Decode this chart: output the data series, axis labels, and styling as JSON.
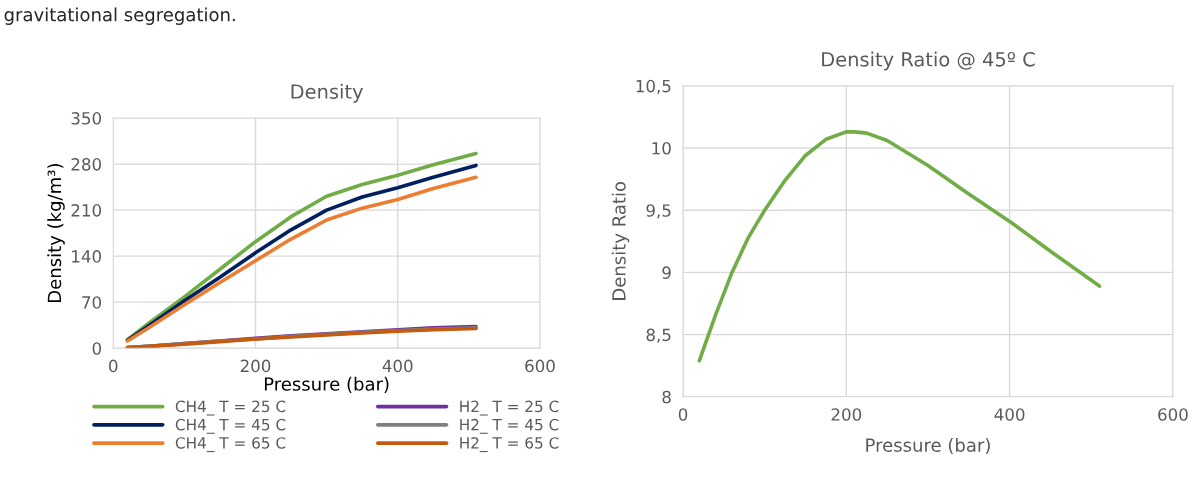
{
  "chart_data": [
    {
      "type": "line",
      "title": "Density",
      "xlabel": "Pressure (bar)",
      "ylabel": "Density (kg/m³)",
      "annotations": [
        "gravitational segregation."
      ],
      "x": [
        20,
        50,
        100,
        150,
        200,
        250,
        300,
        350,
        400,
        450,
        510
      ],
      "series": [
        {
          "name": "CH4_ T = 25 C",
          "color": "#70ad47",
          "values": [
            13,
            38,
            78,
            120,
            162,
            200,
            231,
            249,
            263,
            279,
            296
          ]
        },
        {
          "name": "CH4_ T = 45 C",
          "color": "#002060",
          "values": [
            12,
            34,
            72,
            108,
            145,
            180,
            210,
            230,
            244,
            260,
            278
          ]
        },
        {
          "name": "CH4_ T = 65 C",
          "color": "#ed7d31",
          "values": [
            11,
            31,
            66,
            100,
            133,
            166,
            195,
            213,
            226,
            243,
            260
          ]
        },
        {
          "name": "H2_ T = 25 C",
          "color": "#7030a0",
          "values": [
            1,
            3,
            7,
            11,
            15,
            19,
            22,
            25,
            28,
            31,
            33
          ]
        },
        {
          "name": "H2_ T = 45 C",
          "color": "#7f7f7f",
          "values": [
            1,
            3,
            7,
            11,
            14,
            18,
            21,
            24,
            27,
            29,
            31
          ]
        },
        {
          "name": "H2_ T = 65 C",
          "color": "#c55a11",
          "values": [
            1,
            3,
            6,
            10,
            14,
            17,
            20,
            23,
            26,
            28,
            30
          ]
        }
      ],
      "xlim": [
        0,
        600
      ],
      "xticks": [
        0,
        200,
        400,
        600
      ],
      "ylim": [
        0,
        350
      ],
      "yticks": [
        0,
        70,
        140,
        210,
        280,
        350
      ],
      "grid": true,
      "legend": "bottom",
      "marker": "none",
      "line_style": "solid"
    },
    {
      "type": "line",
      "title": "Density Ratio @ 45º C",
      "xlabel": "Pressure (bar)",
      "ylabel": "Density Ratio",
      "x": [
        20,
        40,
        60,
        80,
        100,
        125,
        150,
        175,
        200,
        210,
        225,
        250,
        300,
        350,
        400,
        450,
        510
      ],
      "series": [
        {
          "color": "#70ad47",
          "values": [
            8.29,
            8.66,
            9.0,
            9.28,
            9.5,
            9.74,
            9.94,
            10.07,
            10.13,
            10.13,
            10.12,
            10.06,
            9.86,
            9.63,
            9.41,
            9.17,
            8.89
          ]
        }
      ],
      "xlim": [
        0,
        600
      ],
      "xticks": [
        0,
        200,
        400,
        600
      ],
      "ylim": [
        8,
        10.5
      ],
      "yticks": [
        8,
        {
          "value": 8.5,
          "label": "8,5"
        },
        9,
        {
          "value": 9.5,
          "label": "9,5"
        },
        10,
        {
          "value": 10.5,
          "label": "10,5"
        }
      ],
      "grid": true,
      "legend": false,
      "marker": "none",
      "line_style": "solid"
    }
  ]
}
